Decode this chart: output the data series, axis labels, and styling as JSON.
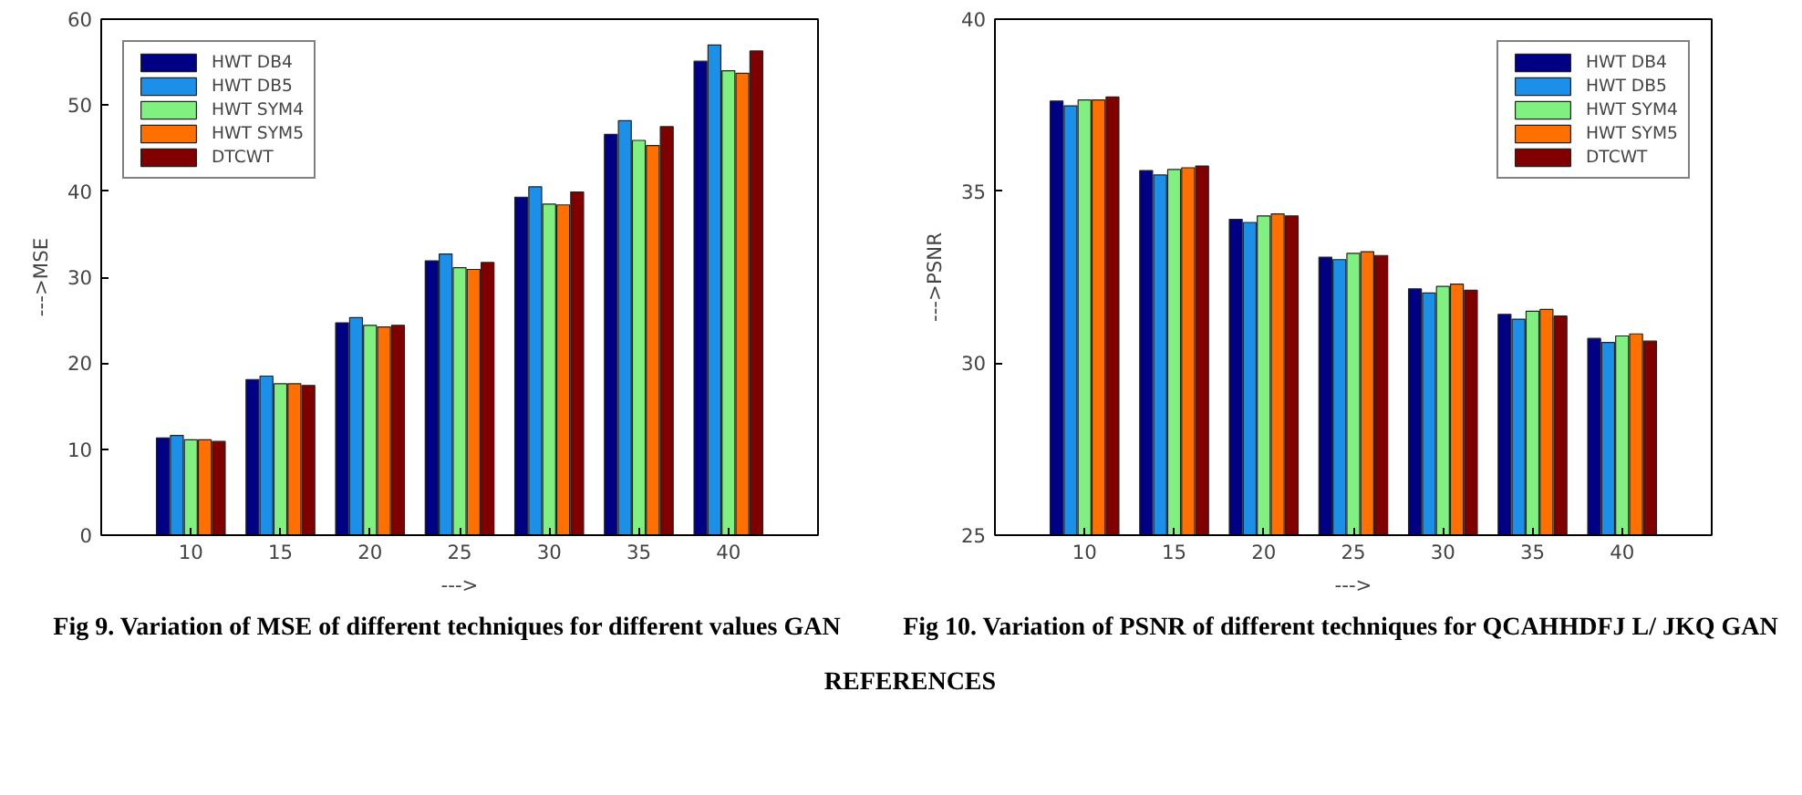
{
  "chart_data": [
    {
      "type": "bar",
      "xlabel": "--->",
      "ylabel": "--->MSE",
      "categories": [
        "10",
        "15",
        "20",
        "25",
        "30",
        "35",
        "40"
      ],
      "ylim": [
        0,
        60
      ],
      "yticks": [
        0,
        10,
        20,
        30,
        40,
        50,
        60
      ],
      "grid": false,
      "legend": "top left",
      "series": [
        {
          "name": "HWT DB4",
          "color": "#000084",
          "values": [
            11.3,
            18.1,
            24.7,
            31.9,
            39.3,
            46.6,
            55.1
          ]
        },
        {
          "name": "HWT DB5",
          "color": "#1c8fe8",
          "values": [
            11.6,
            18.5,
            25.3,
            32.7,
            40.5,
            48.2,
            57.0
          ]
        },
        {
          "name": "HWT SYM4",
          "color": "#80f080",
          "values": [
            11.1,
            17.6,
            24.4,
            31.1,
            38.5,
            45.9,
            54.0
          ]
        },
        {
          "name": "HWT SYM5",
          "color": "#ff7000",
          "values": [
            11.1,
            17.6,
            24.2,
            30.9,
            38.4,
            45.3,
            53.7
          ]
        },
        {
          "name": "DTCWT",
          "color": "#800000",
          "values": [
            10.9,
            17.4,
            24.4,
            31.7,
            39.9,
            47.5,
            56.3
          ]
        }
      ],
      "annotations": [
        "Fig 9. Variation of MSE of different techniques for different values GAN"
      ]
    },
    {
      "type": "bar",
      "xlabel": "--->",
      "ylabel": "--->PSNR",
      "categories": [
        "10",
        "15",
        "20",
        "25",
        "30",
        "35",
        "40"
      ],
      "ylim": [
        25,
        40
      ],
      "yticks": [
        25,
        30,
        35,
        40
      ],
      "grid": false,
      "legend": "top right",
      "series": [
        {
          "name": "HWT DB4",
          "color": "#000084",
          "values": [
            37.62,
            35.6,
            34.18,
            33.08,
            32.16,
            31.42,
            30.72
          ]
        },
        {
          "name": "HWT DB5",
          "color": "#1c8fe8",
          "values": [
            37.48,
            35.47,
            34.09,
            33.01,
            32.04,
            31.28,
            30.6
          ]
        },
        {
          "name": "HWT SYM4",
          "color": "#80f080",
          "values": [
            37.65,
            35.63,
            34.28,
            33.19,
            32.23,
            31.51,
            30.79
          ]
        },
        {
          "name": "HWT SYM5",
          "color": "#ff7000",
          "values": [
            37.65,
            35.68,
            34.34,
            33.24,
            32.3,
            31.56,
            30.85
          ]
        },
        {
          "name": "DTCWT",
          "color": "#800000",
          "values": [
            37.74,
            35.73,
            34.28,
            33.13,
            32.12,
            31.37,
            30.64
          ]
        }
      ],
      "annotations": [
        "Fig 10. Variation of PSNR of different techniques for QCAHHDFJ L/ JKQ GAN",
        "REFERENCES"
      ]
    }
  ]
}
